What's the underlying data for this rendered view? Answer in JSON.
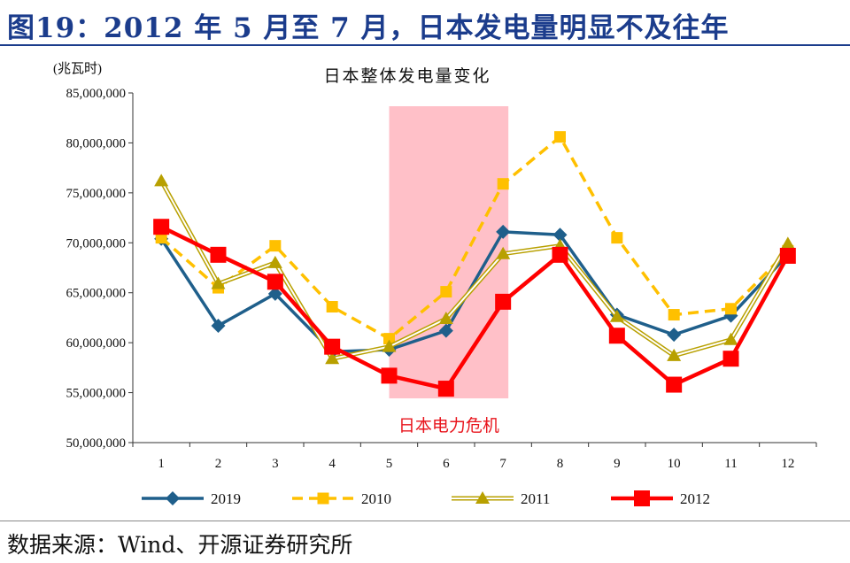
{
  "header": {
    "title": "图19：2012 年 5 月至 7 月，日本发电量明显不及往年"
  },
  "footer": {
    "source": "数据来源：Wind、开源证券研究所"
  },
  "chart_data": {
    "type": "line",
    "title": "日本整体发电量变化",
    "ylabel": "(兆瓦时)",
    "xlabel": "",
    "categories": [
      "1",
      "2",
      "3",
      "4",
      "5",
      "6",
      "7",
      "8",
      "9",
      "10",
      "11",
      "12"
    ],
    "ylim": [
      50000000,
      85000000
    ],
    "yticks": [
      50000000,
      55000000,
      60000000,
      65000000,
      70000000,
      75000000,
      80000000,
      85000000
    ],
    "ytick_labels": [
      "50,000,000",
      "55,000,000",
      "60,000,000",
      "65,000,000",
      "70,000,000",
      "75,000,000",
      "80,000,000",
      "85,000,000"
    ],
    "grid": "horizontal",
    "legend_position": "bottom",
    "highlight": {
      "label": "日本电力危机",
      "from": "5",
      "to": "7",
      "color": "#ffc0c8",
      "label_color": "#e8141c"
    },
    "series": [
      {
        "name": "2019",
        "color": "#1f5f8b",
        "marker": "diamond",
        "dash": false,
        "values": [
          70400000,
          61700000,
          64900000,
          59100000,
          59300000,
          61200000,
          71100000,
          70800000,
          62800000,
          60800000,
          62700000,
          68800000
        ]
      },
      {
        "name": "2010",
        "color": "#ffc000",
        "marker": "square",
        "dash": true,
        "values": [
          70500000,
          65500000,
          69700000,
          63600000,
          60400000,
          65100000,
          75900000,
          80600000,
          70500000,
          62800000,
          63400000,
          69200000
        ]
      },
      {
        "name": "2011",
        "color": "#b8a000",
        "marker": "triangle",
        "dash": false,
        "double": true,
        "values": [
          76200000,
          65900000,
          68000000,
          58400000,
          59600000,
          62400000,
          68900000,
          69700000,
          62600000,
          58700000,
          60300000,
          69900000
        ]
      },
      {
        "name": "2012",
        "color": "#ff0000",
        "marker": "square",
        "dash": false,
        "values": [
          71600000,
          68800000,
          66100000,
          59600000,
          56700000,
          55400000,
          64100000,
          68800000,
          60700000,
          55800000,
          58400000,
          68700000
        ]
      }
    ]
  }
}
